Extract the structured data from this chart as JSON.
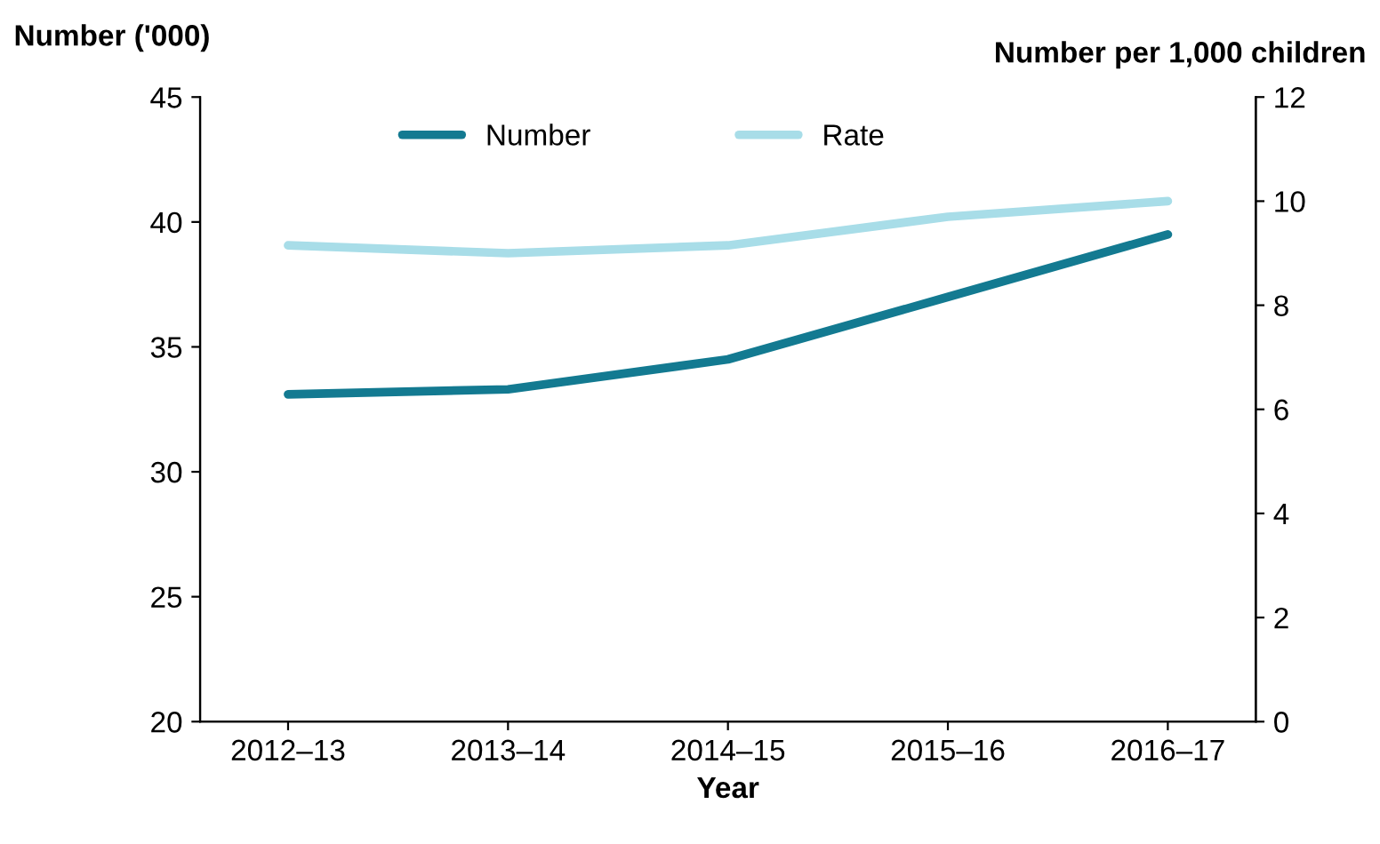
{
  "chart_data": {
    "type": "line",
    "xlabel": "Year",
    "ylabel": "Number ('000)",
    "y2label": "Number per 1,000 children",
    "categories": [
      "2012–13",
      "2013–14",
      "2014–15",
      "2015–16",
      "2016–17"
    ],
    "series": [
      {
        "name": "Number",
        "color": "#137a91",
        "values": [
          33.1,
          33.3,
          34.5,
          37.0,
          39.5
        ]
      },
      {
        "name": "Rate",
        "color": "#a8dde8",
        "values": [
          9.15,
          9.0,
          9.15,
          9.7,
          10.0
        ],
        "axis": "y2"
      }
    ],
    "ylim": [
      20,
      45
    ],
    "yticks": [
      20,
      25,
      30,
      35,
      40,
      45
    ],
    "y2lim": [
      0,
      12
    ],
    "y2ticks": [
      0,
      2,
      4,
      6,
      8,
      10,
      12
    ],
    "grid": false,
    "legend": "top",
    "marker": "none",
    "line_style": "solid"
  }
}
